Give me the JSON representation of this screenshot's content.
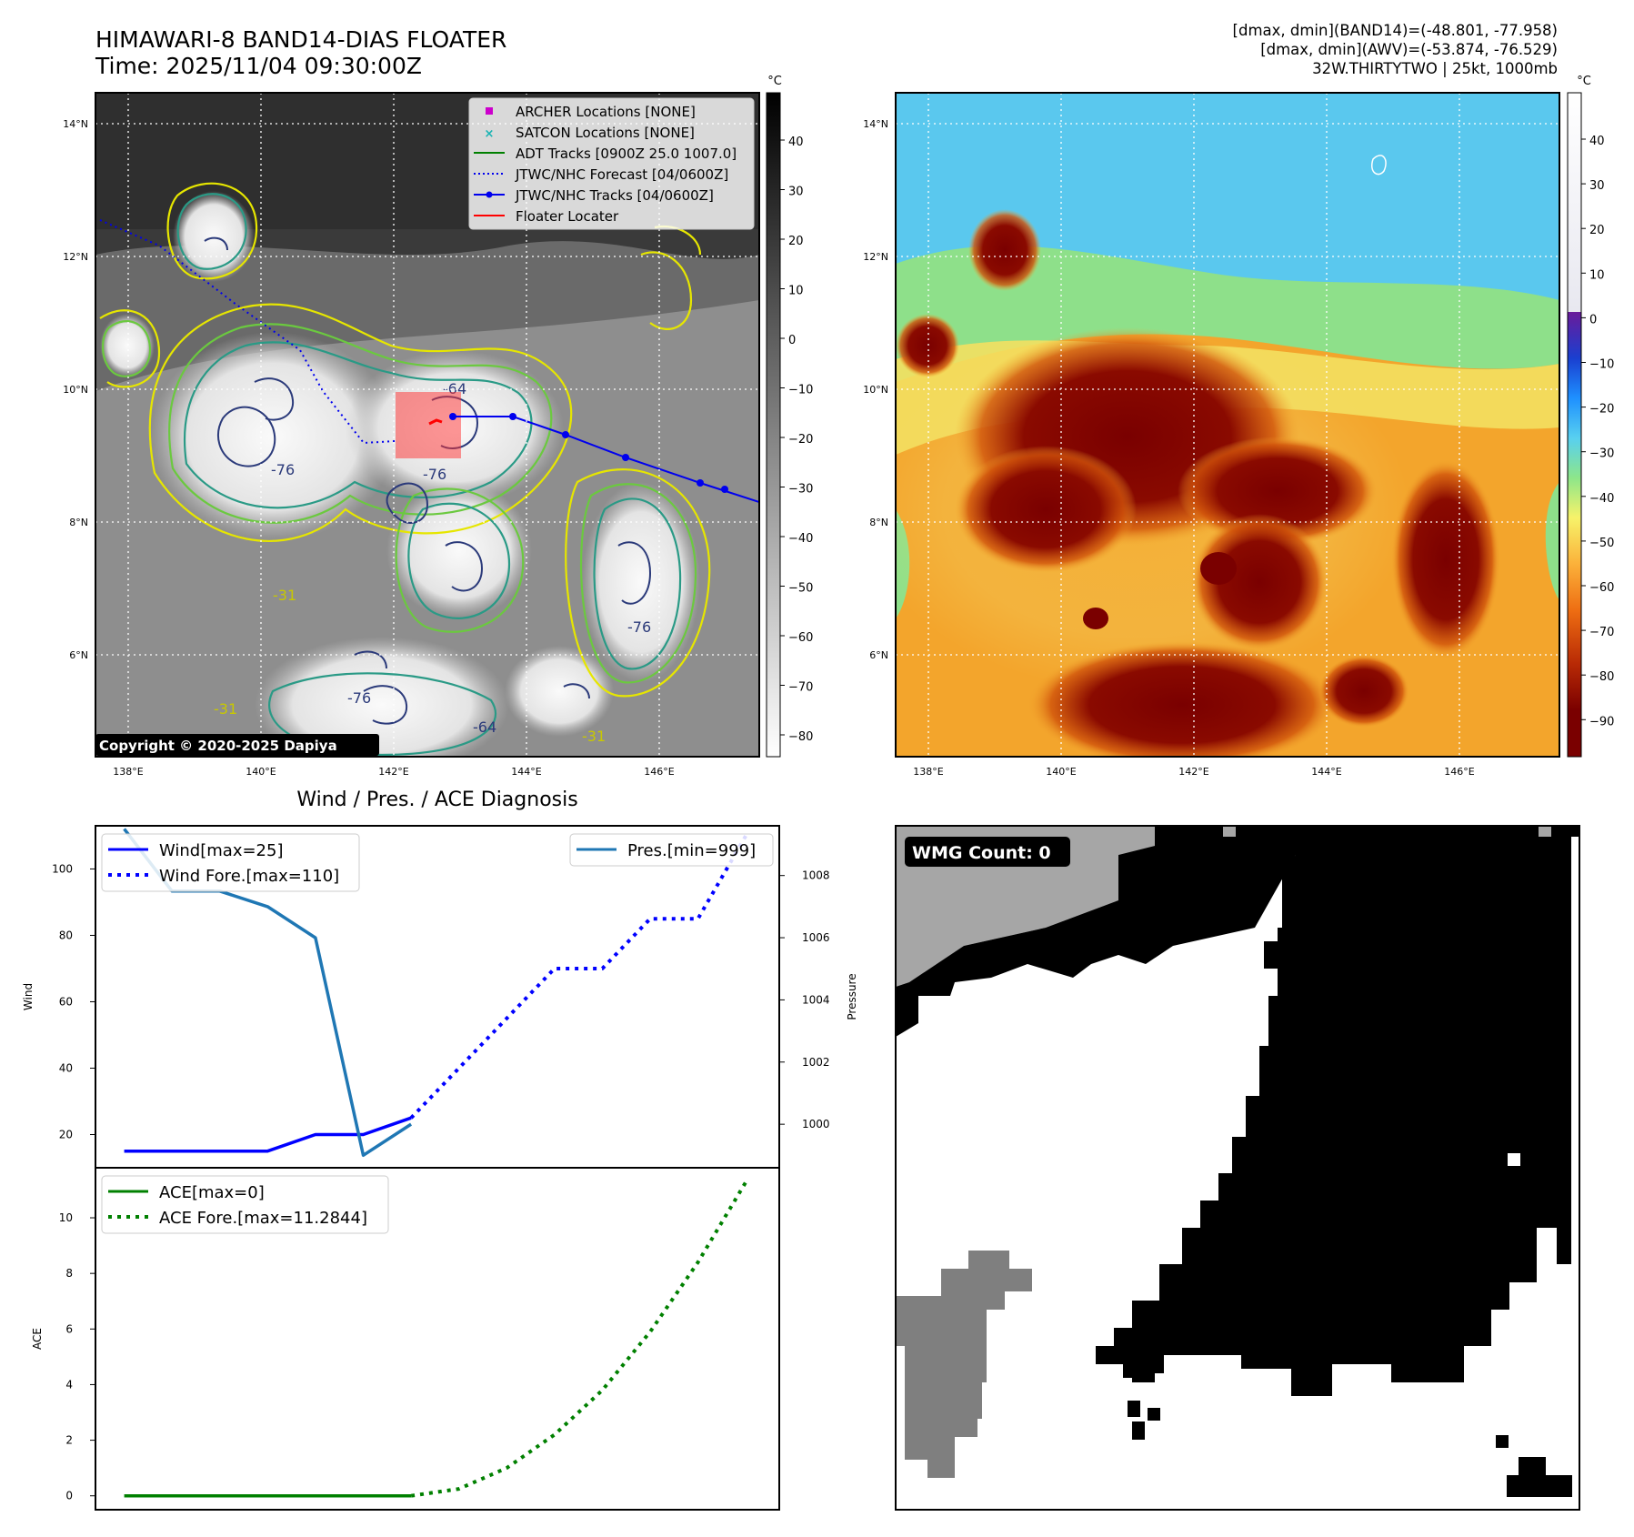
{
  "header": {
    "title_line1": "HIMAWARI-8 BAND14-DIAS FLOATER",
    "title_line2": "Time: 2025/11/04 09:30:00Z",
    "info_line1": "[dmax, dmin](BAND14)=(-48.801, -77.958)",
    "info_line2": "[dmax, dmin](AWV)=(-53.874, -76.529)",
    "info_line3": "32W.THIRTYTWO | 25kt, 1000mb"
  },
  "map": {
    "lon_labels": [
      "138°E",
      "140°E",
      "142°E",
      "144°E",
      "146°E"
    ],
    "lat_labels": [
      "14°N",
      "12°N",
      "10°N",
      "8°N",
      "6°N"
    ],
    "copyright": "Copyright © 2020-2025 Dapiya",
    "contour_labels": [
      "-64",
      "-76",
      "-76",
      "-31",
      "-76",
      "-64",
      "-31",
      "-31",
      "-76"
    ],
    "legend": [
      {
        "label": "ARCHER Locations [NONE]",
        "color": "#cc00cc",
        "kind": "square"
      },
      {
        "label": "SATCON Locations [NONE]",
        "color": "#17b3b3",
        "kind": "x"
      },
      {
        "label": "ADT Tracks [0900Z 25.0 1007.0]",
        "color": "#008000",
        "kind": "line"
      },
      {
        "label": "JTWC/NHC Forecast [04/0600Z]",
        "color": "#0000ee",
        "kind": "dotted"
      },
      {
        "label": "JTWC/NHC Tracks [04/0600Z]",
        "color": "#0000ee",
        "kind": "marker-line"
      },
      {
        "label": "Floater Locater",
        "color": "#ff0000",
        "kind": "line"
      }
    ]
  },
  "colorbars": {
    "unit": "°C",
    "gray_ticks": [
      "40",
      "30",
      "20",
      "10",
      "0",
      "−10",
      "−20",
      "−30",
      "−40",
      "−50",
      "−60",
      "−70",
      "−80"
    ],
    "color_ticks": [
      "40",
      "30",
      "20",
      "10",
      "0",
      "−10",
      "−20",
      "−30",
      "−40",
      "−50",
      "−60",
      "−70",
      "−80",
      "−90"
    ]
  },
  "chart_data": [
    {
      "type": "line",
      "title": "Wind / Pres. / ACE Diagnosis",
      "xlabel": "",
      "ylabel": "Wind",
      "ylabel_right": "Pressure",
      "ylim": [
        10,
        113
      ],
      "ylim_right": [
        998.6,
        1009.6
      ],
      "yticks": [
        20,
        40,
        60,
        80,
        100
      ],
      "yticks_right": [
        1000,
        1002,
        1004,
        1006,
        1008
      ],
      "x_range": [
        -0.6,
        13.7
      ],
      "series": [
        {
          "name": "Wind[max=25]",
          "axis": "left",
          "style": "solid",
          "color": "#0000ff",
          "x": [
            0,
            1,
            2,
            3,
            4,
            5,
            6
          ],
          "values": [
            15,
            15,
            15,
            15,
            20,
            20,
            25
          ]
        },
        {
          "name": "Wind Fore.[max=110]",
          "axis": "left",
          "style": "dotted",
          "color": "#0000ff",
          "x": [
            6,
            7,
            8,
            9,
            10,
            11,
            12,
            13
          ],
          "values": [
            25,
            40,
            55,
            70,
            70,
            85,
            85,
            110
          ]
        },
        {
          "name": "Pres.[min=999]",
          "axis": "right",
          "style": "solid",
          "color": "#1f77b4",
          "x": [
            0,
            1,
            2,
            3,
            4,
            5,
            6
          ],
          "values": [
            1009.5,
            1007.5,
            1007.5,
            1007.0,
            1006.0,
            999.0,
            1000.0
          ]
        }
      ],
      "legend_left": [
        "Wind[max=25]",
        "Wind Fore.[max=110]"
      ],
      "legend_right": [
        "Pres.[min=999]"
      ]
    },
    {
      "type": "line",
      "title": "",
      "xlabel": "",
      "ylabel": "ACE",
      "ylim": [
        -0.5,
        11.8
      ],
      "yticks": [
        0,
        2,
        4,
        6,
        8,
        10
      ],
      "x_range": [
        -0.6,
        13.7
      ],
      "series": [
        {
          "name": "ACE[max=0]",
          "style": "solid",
          "color": "#008000",
          "x": [
            0,
            1,
            2,
            3,
            4,
            5,
            6
          ],
          "values": [
            0,
            0,
            0,
            0,
            0,
            0,
            0
          ]
        },
        {
          "name": "ACE Fore.[max=11.2844]",
          "style": "dotted",
          "color": "#008000",
          "x": [
            6,
            7,
            8,
            9,
            10,
            11,
            12,
            13
          ],
          "values": [
            0,
            0.25,
            1.0,
            2.2,
            3.8,
            5.9,
            8.4,
            11.2844
          ]
        }
      ]
    }
  ],
  "wmg": {
    "label": "WMG Count: 0"
  }
}
